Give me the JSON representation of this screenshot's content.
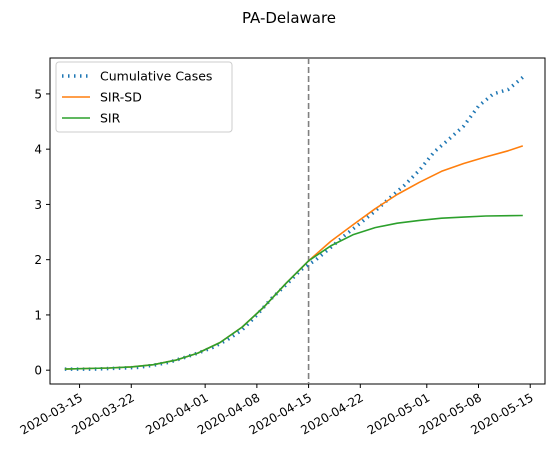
{
  "chart_data": {
    "type": "line",
    "title": "PA-Delaware",
    "xlabel": "",
    "ylabel": "",
    "x_axis": {
      "type": "date",
      "range": [
        "2020-03-11",
        "2020-05-17"
      ],
      "ticks": [
        "2020-03-15",
        "2020-03-22",
        "2020-04-01",
        "2020-04-08",
        "2020-04-15",
        "2020-04-22",
        "2020-05-01",
        "2020-05-08",
        "2020-05-15"
      ]
    },
    "y_axis": {
      "range": [
        -0.25,
        5.65
      ],
      "ticks": [
        0,
        1,
        2,
        3,
        4,
        5
      ]
    },
    "grid": false,
    "legend": {
      "position": "top-left",
      "entries": [
        "Cumulative Cases",
        "SIR-SD",
        "SIR"
      ]
    },
    "vline": {
      "x": "2020-04-15",
      "style": "dashed",
      "color": "#808080"
    },
    "series": [
      {
        "name": "Cumulative Cases",
        "style": "dotted",
        "color": "#1f77b4",
        "points": [
          [
            "2020-03-13",
            0.02
          ],
          [
            "2020-03-15",
            0.02
          ],
          [
            "2020-03-17",
            0.02
          ],
          [
            "2020-03-19",
            0.03
          ],
          [
            "2020-03-21",
            0.04
          ],
          [
            "2020-03-23",
            0.05
          ],
          [
            "2020-03-25",
            0.09
          ],
          [
            "2020-03-27",
            0.14
          ],
          [
            "2020-03-29",
            0.22
          ],
          [
            "2020-03-31",
            0.31
          ],
          [
            "2020-04-02",
            0.41
          ],
          [
            "2020-04-04",
            0.55
          ],
          [
            "2020-04-06",
            0.73
          ],
          [
            "2020-04-08",
            1.0
          ],
          [
            "2020-04-10",
            1.3
          ],
          [
            "2020-04-12",
            1.55
          ],
          [
            "2020-04-14",
            1.82
          ],
          [
            "2020-04-16",
            2.0
          ],
          [
            "2020-04-18",
            2.22
          ],
          [
            "2020-04-20",
            2.45
          ],
          [
            "2020-04-22",
            2.66
          ],
          [
            "2020-04-24",
            2.88
          ],
          [
            "2020-04-26",
            3.12
          ],
          [
            "2020-04-28",
            3.35
          ],
          [
            "2020-04-30",
            3.62
          ],
          [
            "2020-05-02",
            3.95
          ],
          [
            "2020-05-04",
            4.18
          ],
          [
            "2020-05-06",
            4.42
          ],
          [
            "2020-05-08",
            4.78
          ],
          [
            "2020-05-10",
            5.0
          ],
          [
            "2020-05-12",
            5.08
          ],
          [
            "2020-05-14",
            5.3
          ]
        ]
      },
      {
        "name": "SIR-SD",
        "style": "solid",
        "color": "#ff7f0e",
        "points": [
          [
            "2020-03-13",
            0.02
          ],
          [
            "2020-03-16",
            0.03
          ],
          [
            "2020-03-19",
            0.04
          ],
          [
            "2020-03-22",
            0.06
          ],
          [
            "2020-03-25",
            0.1
          ],
          [
            "2020-03-28",
            0.18
          ],
          [
            "2020-03-31",
            0.31
          ],
          [
            "2020-04-03",
            0.5
          ],
          [
            "2020-04-06",
            0.78
          ],
          [
            "2020-04-09",
            1.15
          ],
          [
            "2020-04-12",
            1.58
          ],
          [
            "2020-04-15",
            1.98
          ],
          [
            "2020-04-18",
            2.33
          ],
          [
            "2020-04-21",
            2.63
          ],
          [
            "2020-04-24",
            2.92
          ],
          [
            "2020-04-27",
            3.18
          ],
          [
            "2020-04-30",
            3.4
          ],
          [
            "2020-05-03",
            3.6
          ],
          [
            "2020-05-06",
            3.74
          ],
          [
            "2020-05-09",
            3.86
          ],
          [
            "2020-05-12",
            3.97
          ],
          [
            "2020-05-14",
            4.06
          ]
        ]
      },
      {
        "name": "SIR",
        "style": "solid",
        "color": "#2ca02c",
        "points": [
          [
            "2020-03-13",
            0.02
          ],
          [
            "2020-03-16",
            0.03
          ],
          [
            "2020-03-19",
            0.04
          ],
          [
            "2020-03-22",
            0.06
          ],
          [
            "2020-03-25",
            0.1
          ],
          [
            "2020-03-28",
            0.18
          ],
          [
            "2020-03-31",
            0.31
          ],
          [
            "2020-04-03",
            0.5
          ],
          [
            "2020-04-06",
            0.78
          ],
          [
            "2020-04-09",
            1.15
          ],
          [
            "2020-04-12",
            1.58
          ],
          [
            "2020-04-15",
            1.98
          ],
          [
            "2020-04-18",
            2.25
          ],
          [
            "2020-04-21",
            2.45
          ],
          [
            "2020-04-24",
            2.58
          ],
          [
            "2020-04-27",
            2.66
          ],
          [
            "2020-04-30",
            2.71
          ],
          [
            "2020-05-03",
            2.75
          ],
          [
            "2020-05-06",
            2.77
          ],
          [
            "2020-05-09",
            2.79
          ],
          [
            "2020-05-14",
            2.8
          ]
        ]
      }
    ]
  }
}
